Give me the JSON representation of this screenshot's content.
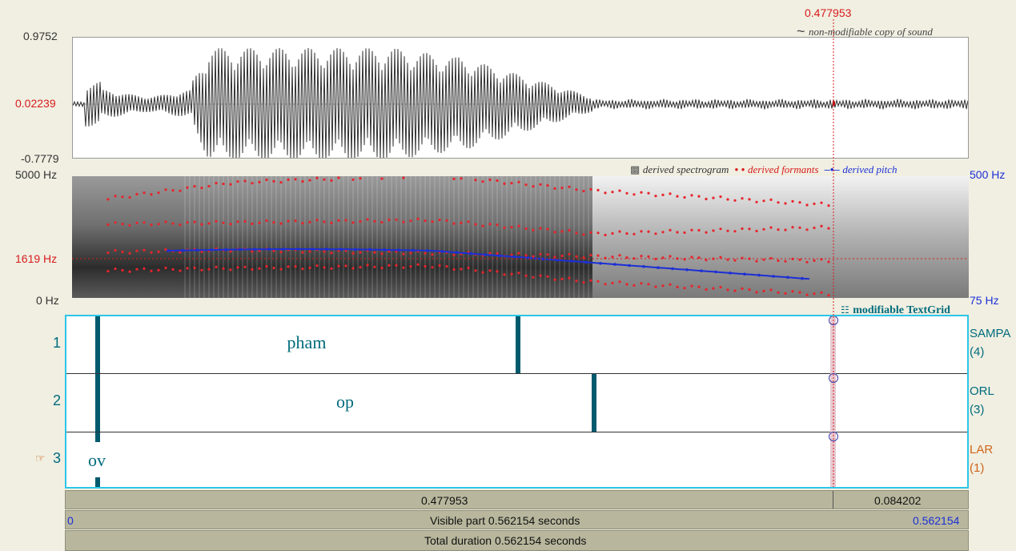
{
  "cursor": {
    "time_label": "0.477953",
    "time_fraction": 0.8501
  },
  "waveform": {
    "max_label": "0.9752",
    "cursor_value_label": "0.02239",
    "min_label": "-0.7779",
    "legend": "non-modifiable copy of sound",
    "legend_icon": "tilde-icon"
  },
  "spectrogram": {
    "top_freq_label": "5000 Hz",
    "cursor_freq_label": "1619 Hz",
    "bottom_freq_label": "0 Hz",
    "pitch_top_label": "500 Hz",
    "pitch_bottom_label": "75 Hz",
    "legend_spectrogram": "derived spectrogram",
    "legend_formants": "derived formants",
    "legend_pitch": "derived pitch",
    "colors": {
      "formants": "#e8242c",
      "pitch": "#1c2fd6",
      "cursor": "#d81b1b"
    }
  },
  "textgrid": {
    "title": "modifiable TextGrid",
    "title_icon": "textgrid-icon",
    "selected_marker": "☞",
    "border_color": "#2cc6e6",
    "tiers": [
      {
        "number": "1",
        "name": "SAMPA",
        "count": "(4)",
        "intervals": [
          "pham"
        ]
      },
      {
        "number": "2",
        "name": "ORL",
        "count": "(3)",
        "intervals": [
          "op"
        ]
      },
      {
        "number": "3",
        "name": "LAR",
        "count": "(1)",
        "intervals": [
          "ov"
        ]
      }
    ]
  },
  "bars": {
    "selection_left": "0.477953",
    "selection_right": "0.084202",
    "visible_start": "0",
    "visible_label": "Visible part 0.562154 seconds",
    "visible_end": "0.562154",
    "total_label": "Total duration 0.562154 seconds"
  }
}
